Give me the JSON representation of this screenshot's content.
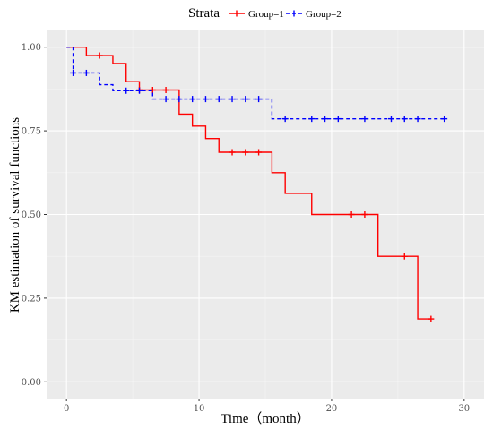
{
  "chart_data": {
    "type": "line",
    "title": "",
    "xlabel": "Time（month）",
    "ylabel": "KM estimation of survival functions",
    "xlim": [
      -1.5,
      31.5
    ],
    "ylim": [
      -0.05,
      1.05
    ],
    "x_ticks": [
      0,
      10,
      20,
      30
    ],
    "x_tick_labels": [
      "0",
      "10",
      "20",
      "30"
    ],
    "y_ticks": [
      0,
      0.25,
      0.5,
      0.75,
      1.0
    ],
    "y_tick_labels": [
      "0.00",
      "0.25",
      "0.50",
      "0.75",
      "1.00"
    ],
    "grid": true,
    "legend_position": "top",
    "legend_title": "Strata",
    "series": [
      {
        "name": "Group=1",
        "color": "#ff0000",
        "line_style": "solid",
        "steps": [
          [
            0,
            1.0
          ],
          [
            1.5,
            0.975
          ],
          [
            3.5,
            0.951
          ],
          [
            4.5,
            0.897
          ],
          [
            5.5,
            0.872
          ],
          [
            8.5,
            0.8
          ],
          [
            9.5,
            0.764
          ],
          [
            10.5,
            0.727
          ],
          [
            11.5,
            0.686
          ],
          [
            15.5,
            0.625
          ],
          [
            16.5,
            0.563
          ],
          [
            18.5,
            0.5
          ],
          [
            23.5,
            0.375
          ],
          [
            26.5,
            0.188
          ],
          [
            27.5,
            0.188
          ]
        ],
        "censor_times": [
          2.5,
          5.5,
          6.5,
          7.5,
          12.5,
          13.5,
          14.5,
          21.5,
          22.5,
          25.5,
          27.5
        ]
      },
      {
        "name": "Group=2",
        "color": "#0000ff",
        "line_style": "dashed",
        "steps": [
          [
            0,
            1.0
          ],
          [
            0.5,
            0.923
          ],
          [
            2.5,
            0.888
          ],
          [
            3.5,
            0.87
          ],
          [
            6.5,
            0.845
          ],
          [
            15.5,
            0.786
          ],
          [
            28.5,
            0.786
          ]
        ],
        "censor_times": [
          0.5,
          1.5,
          4.5,
          5.5,
          7.5,
          8.5,
          9.5,
          10.5,
          11.5,
          12.5,
          13.5,
          14.5,
          16.5,
          18.5,
          19.5,
          20.5,
          22.5,
          24.5,
          25.5,
          26.5,
          28.5
        ]
      }
    ]
  }
}
